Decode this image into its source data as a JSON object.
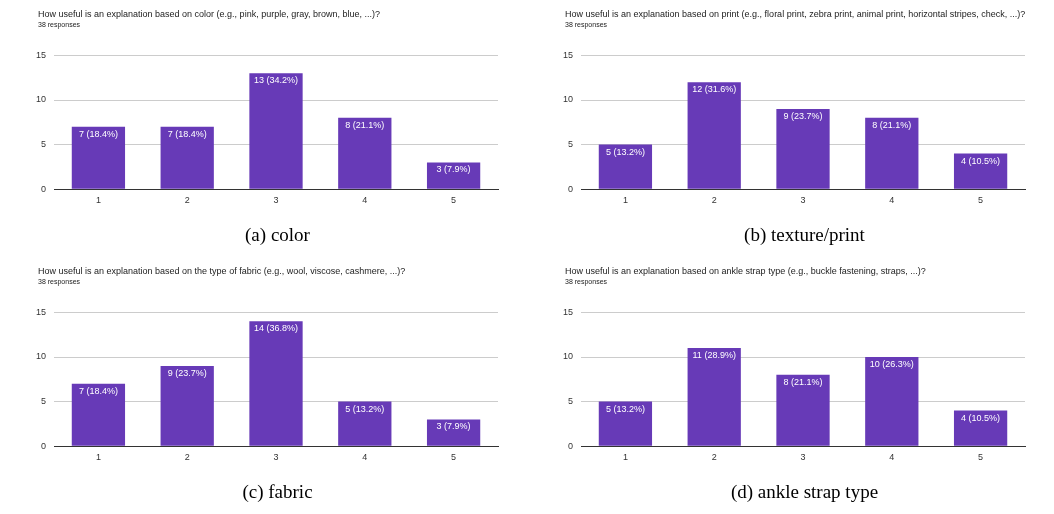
{
  "chart_data": [
    {
      "type": "bar",
      "title": "How useful is an explanation based on color (e.g., pink, purple, gray, brown, blue, ...)?",
      "subtitle": "38 responses",
      "categories": [
        "1",
        "2",
        "3",
        "4",
        "5"
      ],
      "values": [
        7,
        7,
        13,
        8,
        3
      ],
      "value_labels": [
        "7 (18.4%)",
        "7 (18.4%)",
        "13 (34.2%)",
        "8 (21.1%)",
        "3 (7.9%)"
      ],
      "color": "#673ab7",
      "ylim": [
        0,
        15
      ],
      "yticks": [
        0,
        5,
        10,
        15
      ],
      "grid": "y",
      "annotations": [
        "(a) color"
      ]
    },
    {
      "type": "bar",
      "title": "How useful is an explanation based on print (e.g., floral print, zebra print, animal print, horizontal stripes, check, ...)?",
      "subtitle": "38 responses",
      "categories": [
        "1",
        "2",
        "3",
        "4",
        "5"
      ],
      "values": [
        5,
        12,
        9,
        8,
        4
      ],
      "value_labels": [
        "5 (13.2%)",
        "12 (31.6%)",
        "9 (23.7%)",
        "8 (21.1%)",
        "4 (10.5%)"
      ],
      "color": "#673ab7",
      "ylim": [
        0,
        15
      ],
      "yticks": [
        0,
        5,
        10,
        15
      ],
      "grid": "y",
      "annotations": [
        "(b) texture/print"
      ]
    },
    {
      "type": "bar",
      "title": "How useful is an explanation based on the type of fabric (e.g., wool, viscose, cashmere, ...)?",
      "subtitle": "38 responses",
      "categories": [
        "1",
        "2",
        "3",
        "4",
        "5"
      ],
      "values": [
        7,
        9,
        14,
        5,
        3
      ],
      "value_labels": [
        "7 (18.4%)",
        "9 (23.7%)",
        "14 (36.8%)",
        "5 (13.2%)",
        "3 (7.9%)"
      ],
      "color": "#673ab7",
      "ylim": [
        0,
        15
      ],
      "yticks": [
        0,
        5,
        10,
        15
      ],
      "grid": "y",
      "annotations": [
        "(c) fabric"
      ]
    },
    {
      "type": "bar",
      "title": "How useful is an explanation based on ankle strap type (e.g., buckle fastening, straps, ...)?",
      "subtitle": "38 responses",
      "categories": [
        "1",
        "2",
        "3",
        "4",
        "5"
      ],
      "values": [
        5,
        11,
        8,
        10,
        4
      ],
      "value_labels": [
        "5 (13.2%)",
        "11 (28.9%)",
        "8 (21.1%)",
        "10 (26.3%)",
        "4 (10.5%)"
      ],
      "color": "#673ab7",
      "ylim": [
        0,
        15
      ],
      "yticks": [
        0,
        5,
        10,
        15
      ],
      "grid": "y",
      "annotations": [
        "(d) ankle strap type"
      ]
    }
  ]
}
